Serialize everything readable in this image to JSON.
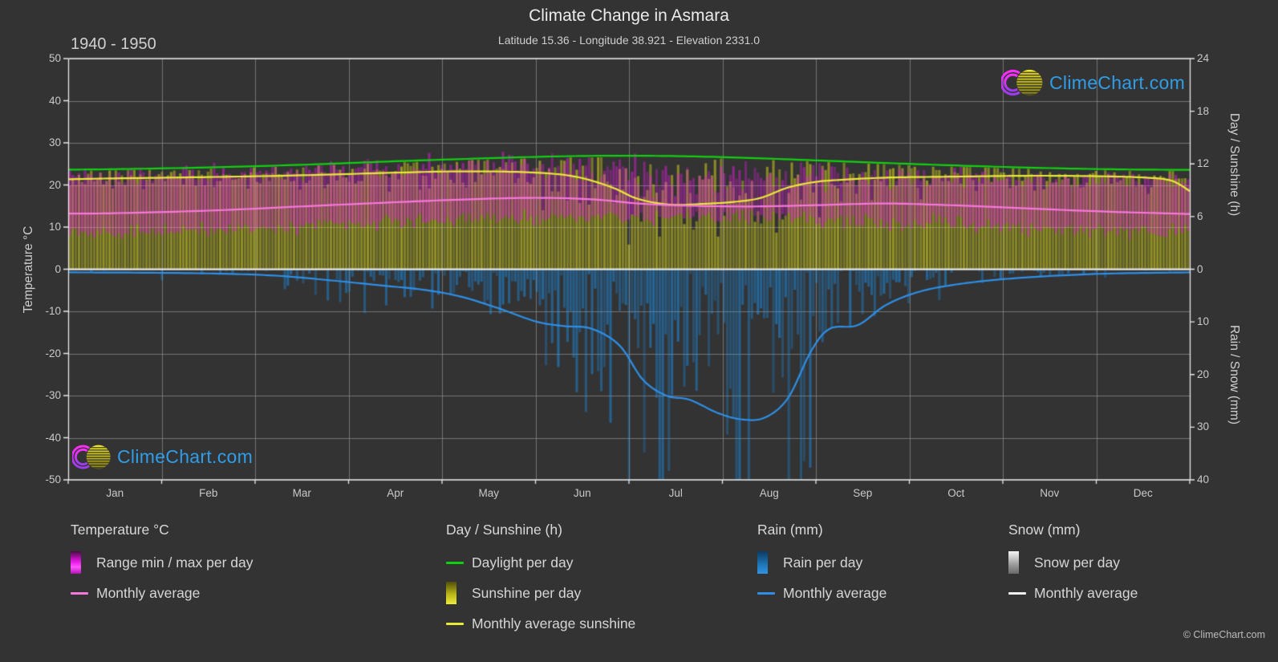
{
  "header": {
    "title": "Climate Change in Asmara",
    "subtitle": "Latitude 15.36 - Longitude 38.921 - Elevation 2331.0",
    "period": "1940 - 1950"
  },
  "watermark": {
    "text": "ClimeChart.com",
    "copyright": "© ClimeChart.com"
  },
  "axes": {
    "left": {
      "label": "Temperature °C",
      "ticks": [
        50,
        40,
        30,
        20,
        10,
        0,
        -10,
        -20,
        -30,
        -40,
        -50
      ],
      "range": [
        -50,
        50
      ]
    },
    "right_top": {
      "label": "Day / Sunshine (h)",
      "ticks": [
        24,
        18,
        12,
        6,
        0
      ],
      "range": [
        0,
        24
      ]
    },
    "right_bottom": {
      "label": "Rain / Snow (mm)",
      "ticks": [
        10,
        20,
        30,
        40
      ],
      "range": [
        0,
        40
      ]
    },
    "x": {
      "months": [
        "Jan",
        "Feb",
        "Mar",
        "Apr",
        "May",
        "Jun",
        "Jul",
        "Aug",
        "Sep",
        "Oct",
        "Nov",
        "Dec"
      ]
    }
  },
  "legend": {
    "groups": [
      {
        "title": "Temperature °C",
        "items": [
          {
            "swatch": "gradient-magenta",
            "label": "Range min / max per day"
          },
          {
            "swatch": "line-pink",
            "label": "Monthly average"
          }
        ]
      },
      {
        "title": "Day / Sunshine (h)",
        "items": [
          {
            "swatch": "line-green",
            "label": "Daylight per day"
          },
          {
            "swatch": "gradient-yellow",
            "label": "Sunshine per day"
          },
          {
            "swatch": "line-yellow",
            "label": "Monthly average sunshine"
          }
        ]
      },
      {
        "title": "Rain (mm)",
        "items": [
          {
            "swatch": "gradient-blue",
            "label": "Rain per day"
          },
          {
            "swatch": "line-blue",
            "label": "Monthly average"
          }
        ]
      },
      {
        "title": "Snow (mm)",
        "items": [
          {
            "swatch": "gradient-gray",
            "label": "Snow per day"
          },
          {
            "swatch": "line-white",
            "label": "Monthly average"
          }
        ]
      }
    ]
  },
  "colors": {
    "background": "#333333",
    "grid": "#5c5c5c",
    "axis": "#e9e9e9",
    "text": "#d6d6d6",
    "daylight_line": "#12cf12",
    "sunshine_line": "#e9e93a",
    "temp_avg_line": "#f778dc",
    "rain_line": "#2f8fe6",
    "snow_line": "#f0f0f0",
    "sunshine_bar": "#d2d01c",
    "temp_range_bar": "#e81ae2",
    "rain_bar": "#207ac0",
    "watermark_text": "#2f9de8"
  },
  "chart_data": {
    "type": "line",
    "title": "Climate Change in Asmara",
    "subtitle": "Latitude 15.36 - Longitude 38.921 - Elevation 2331.0",
    "period": "1940 - 1950",
    "categories": [
      "Jan",
      "Feb",
      "Mar",
      "Apr",
      "May",
      "Jun",
      "Jul",
      "Aug",
      "Sep",
      "Oct",
      "Nov",
      "Dec"
    ],
    "axes": {
      "temperature_c": [
        -50,
        50
      ],
      "day_sunshine_h": [
        0,
        24
      ],
      "rain_snow_mm": [
        0,
        40
      ]
    },
    "grid": true,
    "legend_position": "bottom",
    "monthly": {
      "daylight_h": [
        11.4,
        11.6,
        11.9,
        12.3,
        12.65,
        12.9,
        12.85,
        12.6,
        12.15,
        11.8,
        11.5,
        11.3
      ],
      "sunshine_avg_h": [
        10.4,
        10.5,
        10.7,
        11.0,
        11.15,
        10.4,
        7.4,
        8.1,
        10.3,
        10.6,
        10.65,
        10.3
      ],
      "temp_avg_c": [
        13.3,
        13.9,
        14.9,
        15.9,
        16.8,
        16.9,
        15.3,
        15.0,
        15.5,
        14.8,
        14.0,
        13.3
      ],
      "temp_max_avg_c": [
        21.8,
        22.3,
        23.2,
        23.9,
        24.3,
        24.2,
        21.6,
        21.3,
        22.3,
        21.9,
        21.4,
        21.3
      ],
      "temp_min_avg_c": [
        8.8,
        9.2,
        10.2,
        11.2,
        12.2,
        12.6,
        12.2,
        12.0,
        11.2,
        10.6,
        9.6,
        9.0
      ],
      "rain_daily_mean_mm": [
        0.4,
        0.5,
        1.3,
        3.5,
        7.0,
        13.0,
        26.0,
        21.0,
        5.0,
        1.8,
        0.8,
        0.4
      ],
      "snow_daily_mean_mm": [
        0,
        0,
        0,
        0,
        0,
        0,
        0,
        0,
        0,
        0,
        0,
        0
      ]
    },
    "line_points": {
      "daylight_h": [
        [
          0,
          11.35
        ],
        [
          0.5,
          11.4
        ],
        [
          1.5,
          11.6
        ],
        [
          2.5,
          11.9
        ],
        [
          3.5,
          12.3
        ],
        [
          4.5,
          12.65
        ],
        [
          5.3,
          12.87
        ],
        [
          6.0,
          12.93
        ],
        [
          6.7,
          12.85
        ],
        [
          7.5,
          12.6
        ],
        [
          8.5,
          12.2
        ],
        [
          9.5,
          11.82
        ],
        [
          10.5,
          11.52
        ],
        [
          11.3,
          11.37
        ],
        [
          12,
          11.32
        ]
      ],
      "sunshine_monthly_avg_h": [
        [
          0,
          10.25
        ],
        [
          0.5,
          10.35
        ],
        [
          1.5,
          10.5
        ],
        [
          2.5,
          10.7
        ],
        [
          3.5,
          11.0
        ],
        [
          4.2,
          11.15
        ],
        [
          4.9,
          11.05
        ],
        [
          5.4,
          10.6
        ],
        [
          5.8,
          9.4
        ],
        [
          6.1,
          8.0
        ],
        [
          6.45,
          7.35
        ],
        [
          6.8,
          7.45
        ],
        [
          7.1,
          7.65
        ],
        [
          7.4,
          8.1
        ],
        [
          7.7,
          9.3
        ],
        [
          8.0,
          9.95
        ],
        [
          8.3,
          10.2
        ],
        [
          8.8,
          10.45
        ],
        [
          9.5,
          10.55
        ],
        [
          10.3,
          10.65
        ],
        [
          11.0,
          10.6
        ],
        [
          11.5,
          10.45
        ],
        [
          11.8,
          10.1
        ],
        [
          12,
          8.9
        ]
      ],
      "temp_monthly_avg_c": [
        [
          0,
          13.2
        ],
        [
          0.5,
          13.3
        ],
        [
          1.5,
          13.9
        ],
        [
          2.5,
          14.9
        ],
        [
          3.5,
          15.9
        ],
        [
          4.3,
          16.6
        ],
        [
          5.0,
          16.95
        ],
        [
          5.6,
          16.6
        ],
        [
          6.1,
          15.6
        ],
        [
          6.6,
          15.1
        ],
        [
          7.3,
          14.9
        ],
        [
          8.0,
          15.2
        ],
        [
          8.7,
          15.6
        ],
        [
          9.3,
          15.3
        ],
        [
          9.9,
          14.8
        ],
        [
          10.5,
          14.2
        ],
        [
          11.2,
          13.6
        ],
        [
          11.7,
          13.3
        ],
        [
          12,
          13.1
        ]
      ],
      "rain_monthly_avg_mm": [
        [
          0,
          0.6
        ],
        [
          0.7,
          0.65
        ],
        [
          1.5,
          0.8
        ],
        [
          2.2,
          1.2
        ],
        [
          2.8,
          2.1
        ],
        [
          3.3,
          3.0
        ],
        [
          3.8,
          3.9
        ],
        [
          4.2,
          5.2
        ],
        [
          4.6,
          7.4
        ],
        [
          5.0,
          9.9
        ],
        [
          5.3,
          10.8
        ],
        [
          5.6,
          11.3
        ],
        [
          5.9,
          14.5
        ],
        [
          6.15,
          21.0
        ],
        [
          6.4,
          24.0
        ],
        [
          6.65,
          24.8
        ],
        [
          6.95,
          27.3
        ],
        [
          7.2,
          28.5
        ],
        [
          7.45,
          28.2
        ],
        [
          7.7,
          24.5
        ],
        [
          7.95,
          15.5
        ],
        [
          8.15,
          11.3
        ],
        [
          8.45,
          10.6
        ],
        [
          8.75,
          6.8
        ],
        [
          9.1,
          4.3
        ],
        [
          9.5,
          2.9
        ],
        [
          10.0,
          1.9
        ],
        [
          10.6,
          1.2
        ],
        [
          11.2,
          0.8
        ],
        [
          12,
          0.6
        ]
      ],
      "snow_monthly_avg_mm": [
        [
          0,
          0
        ],
        [
          12,
          0
        ]
      ]
    }
  }
}
